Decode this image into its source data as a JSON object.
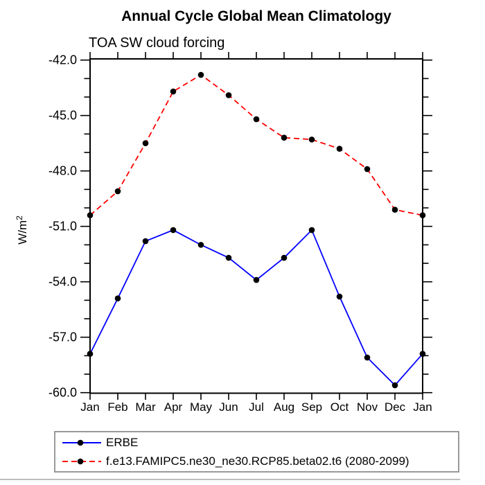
{
  "chart_data": {
    "type": "line",
    "title": "Annual Cycle Global Mean Climatology",
    "subtitle": "TOA SW cloud forcing",
    "ylabel": "W/m²",
    "xlabel": "",
    "categories": [
      "Jan",
      "Feb",
      "Mar",
      "Apr",
      "May",
      "Jun",
      "Jul",
      "Aug",
      "Sep",
      "Oct",
      "Nov",
      "Dec",
      "Jan"
    ],
    "series": [
      {
        "name": "ERBE",
        "color": "#0000ff",
        "line_style": "solid",
        "marker": "black-dot",
        "values": [
          -57.9,
          -54.9,
          -51.8,
          -51.2,
          -52.0,
          -52.7,
          -53.9,
          -52.7,
          -51.2,
          -54.8,
          -58.1,
          -59.6,
          -57.9
        ]
      },
      {
        "name": "f.e13.FAMIPC5.ne30_ne30.RCP85.beta02.t6 (2080-2099)",
        "color": "#ff0000",
        "line_style": "dashed",
        "marker": "black-dot",
        "values": [
          -50.4,
          -49.1,
          -46.5,
          -43.7,
          -42.8,
          -43.9,
          -45.2,
          -46.2,
          -46.3,
          -46.8,
          -47.9,
          -50.1,
          -50.4
        ]
      }
    ],
    "ylim": [
      -60.1,
      -41.9
    ],
    "yticks_major": [
      -42,
      -45,
      -48,
      -51,
      -54,
      -57,
      -60
    ],
    "ytick_labels": [
      "-42.0",
      "-45.0",
      "-48.0",
      "-51.0",
      "-54.0",
      "-57.0",
      "-60.0"
    ],
    "ytick_minor_step": 1,
    "grid": "off",
    "legend_position": "below-bottom-left",
    "marker_color": "#000000",
    "axis_color": "#000000",
    "legend_border_color": "#999999",
    "divider_color": "#bdbdbd"
  }
}
